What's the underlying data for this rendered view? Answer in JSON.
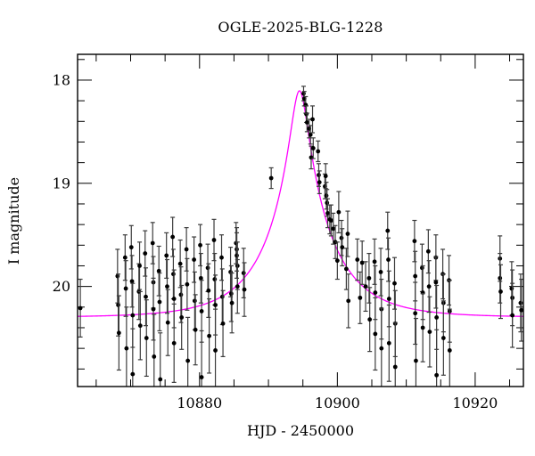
{
  "figure": {
    "background": "#ffffff"
  },
  "chart_data": {
    "type": "scatter",
    "title": "OGLE-2025-BLG-1228",
    "xlabel": "HJD - 2450000",
    "ylabel": "I magnitude",
    "xlim": [
      10862.3,
      10927.0
    ],
    "ylim": [
      20.97,
      17.75
    ],
    "y_axis_inverted": true,
    "grid": false,
    "x_major_ticks": [
      10880,
      10900,
      10920
    ],
    "x_minor_step": 5,
    "y_major_ticks": [
      18,
      19,
      20
    ],
    "y_minor_step": 0.2,
    "axis_color": "#000000",
    "point_color": "#000000",
    "errorbar_color": "#3c3c3c",
    "model_curve": {
      "form": "paczynski-point-lens",
      "t0": 10894.5,
      "tE": 9.0,
      "u0": 0.133,
      "I0": 20.3,
      "color": "#ff00ff"
    },
    "points": [
      [
        10862.7,
        20.21,
        0.28
      ],
      [
        10868.1,
        19.9,
        0.26
      ],
      [
        10868.2,
        20.18,
        0.3
      ],
      [
        10868.3,
        20.45,
        0.36
      ],
      [
        10869.2,
        19.72,
        0.22
      ],
      [
        10869.3,
        20.02,
        0.27
      ],
      [
        10869.4,
        20.6,
        0.4
      ],
      [
        10870.1,
        19.62,
        0.21
      ],
      [
        10870.2,
        19.95,
        0.25
      ],
      [
        10870.3,
        20.28,
        0.31
      ],
      [
        10870.3,
        20.85,
        0.44
      ],
      [
        10871.2,
        20.05,
        0.27
      ],
      [
        10871.3,
        19.8,
        0.23
      ],
      [
        10871.4,
        20.38,
        0.33
      ],
      [
        10872.1,
        19.68,
        0.22
      ],
      [
        10872.2,
        20.1,
        0.28
      ],
      [
        10872.3,
        20.5,
        0.37
      ],
      [
        10873.2,
        19.58,
        0.2
      ],
      [
        10873.3,
        19.96,
        0.25
      ],
      [
        10873.3,
        20.22,
        0.3
      ],
      [
        10873.4,
        20.68,
        0.41
      ],
      [
        10874.1,
        19.85,
        0.24
      ],
      [
        10874.2,
        20.15,
        0.28
      ],
      [
        10874.3,
        20.9,
        0.45
      ],
      [
        10875.2,
        19.7,
        0.22
      ],
      [
        10875.3,
        20.0,
        0.26
      ],
      [
        10875.4,
        20.35,
        0.32
      ],
      [
        10876.1,
        19.52,
        0.19
      ],
      [
        10876.2,
        19.88,
        0.24
      ],
      [
        10876.3,
        20.12,
        0.28
      ],
      [
        10876.3,
        20.55,
        0.38
      ],
      [
        10877.2,
        19.78,
        0.23
      ],
      [
        10877.3,
        20.08,
        0.27
      ],
      [
        10877.4,
        20.3,
        0.31
      ],
      [
        10878.1,
        19.64,
        0.21
      ],
      [
        10878.2,
        19.98,
        0.25
      ],
      [
        10878.3,
        20.72,
        0.42
      ],
      [
        10879.2,
        19.74,
        0.22
      ],
      [
        10879.3,
        20.14,
        0.28
      ],
      [
        10879.4,
        20.42,
        0.34
      ],
      [
        10880.1,
        19.6,
        0.2
      ],
      [
        10880.2,
        19.92,
        0.24
      ],
      [
        10880.3,
        20.24,
        0.3
      ],
      [
        10880.3,
        20.88,
        0.45
      ],
      [
        10881.2,
        19.82,
        0.23
      ],
      [
        10881.3,
        20.04,
        0.26
      ],
      [
        10881.4,
        20.48,
        0.36
      ],
      [
        10882.1,
        19.55,
        0.2
      ],
      [
        10882.2,
        19.93,
        0.25
      ],
      [
        10882.3,
        20.18,
        0.29
      ],
      [
        10882.3,
        20.62,
        0.4
      ],
      [
        10883.2,
        19.72,
        0.22
      ],
      [
        10883.3,
        20.1,
        0.27
      ],
      [
        10883.4,
        20.36,
        0.32
      ],
      [
        10884.5,
        19.86,
        0.24
      ],
      [
        10884.6,
        20.07,
        0.27
      ],
      [
        10884.7,
        20.16,
        0.29
      ],
      [
        10885.3,
        19.58,
        0.2
      ],
      [
        10885.4,
        19.64,
        0.21
      ],
      [
        10885.4,
        19.7,
        0.22
      ],
      [
        10885.5,
        19.8,
        0.23
      ],
      [
        10885.5,
        20.0,
        0.26
      ],
      [
        10886.4,
        19.87,
        0.24
      ],
      [
        10886.5,
        20.03,
        0.26
      ],
      [
        10890.4,
        18.95,
        0.1
      ],
      [
        10895.1,
        18.13,
        0.07
      ],
      [
        10895.2,
        18.18,
        0.07
      ],
      [
        10895.4,
        18.24,
        0.08
      ],
      [
        10895.5,
        18.33,
        0.08
      ],
      [
        10895.6,
        18.41,
        0.09
      ],
      [
        10895.9,
        18.47,
        0.09
      ],
      [
        10896.1,
        18.53,
        0.09
      ],
      [
        10896.2,
        18.75,
        0.11
      ],
      [
        10896.4,
        18.38,
        0.13
      ],
      [
        10896.5,
        18.66,
        0.1
      ],
      [
        10897.2,
        18.69,
        0.1
      ],
      [
        10897.3,
        18.92,
        0.11
      ],
      [
        10897.4,
        18.99,
        0.11
      ],
      [
        10898.2,
        19.03,
        0.12
      ],
      [
        10898.3,
        18.93,
        0.12
      ],
      [
        10898.4,
        19.12,
        0.13
      ],
      [
        10898.5,
        19.19,
        0.13
      ],
      [
        10898.6,
        19.29,
        0.14
      ],
      [
        10898.9,
        19.35,
        0.14
      ],
      [
        10899.1,
        19.36,
        0.15
      ],
      [
        10899.4,
        19.44,
        0.15
      ],
      [
        10899.7,
        19.57,
        0.16
      ],
      [
        10900.0,
        19.75,
        0.18
      ],
      [
        10900.2,
        19.28,
        0.2
      ],
      [
        10900.6,
        19.53,
        0.17
      ],
      [
        10900.7,
        19.62,
        0.18
      ],
      [
        10901.3,
        19.83,
        0.2
      ],
      [
        10901.5,
        19.49,
        0.22
      ],
      [
        10901.6,
        20.14,
        0.26
      ],
      [
        10902.9,
        19.74,
        0.2
      ],
      [
        10903.3,
        20.11,
        0.25
      ],
      [
        10903.6,
        19.77,
        0.21
      ],
      [
        10904.1,
        20.0,
        0.24
      ],
      [
        10904.6,
        19.92,
        0.24
      ],
      [
        10904.7,
        20.32,
        0.31
      ],
      [
        10905.4,
        19.76,
        0.22
      ],
      [
        10905.5,
        20.06,
        0.26
      ],
      [
        10905.5,
        20.46,
        0.35
      ],
      [
        10906.3,
        19.86,
        0.23
      ],
      [
        10906.4,
        20.22,
        0.29
      ],
      [
        10906.4,
        20.6,
        0.39
      ],
      [
        10907.3,
        19.46,
        0.18
      ],
      [
        10907.4,
        19.74,
        0.21
      ],
      [
        10907.5,
        20.12,
        0.27
      ],
      [
        10907.5,
        20.55,
        0.37
      ],
      [
        10908.3,
        19.97,
        0.25
      ],
      [
        10908.4,
        20.36,
        0.32
      ],
      [
        10908.4,
        20.78,
        0.43
      ],
      [
        10911.2,
        19.56,
        0.2
      ],
      [
        10911.3,
        19.9,
        0.24
      ],
      [
        10911.3,
        20.26,
        0.3
      ],
      [
        10911.4,
        20.72,
        0.41
      ],
      [
        10912.3,
        19.82,
        0.23
      ],
      [
        10912.4,
        20.06,
        0.26
      ],
      [
        10912.4,
        20.4,
        0.33
      ],
      [
        10913.2,
        19.66,
        0.21
      ],
      [
        10913.3,
        20.0,
        0.25
      ],
      [
        10913.4,
        20.44,
        0.34
      ],
      [
        10914.3,
        19.72,
        0.22
      ],
      [
        10914.3,
        19.96,
        0.25
      ],
      [
        10914.4,
        20.3,
        0.31
      ],
      [
        10914.4,
        20.86,
        0.44
      ],
      [
        10915.3,
        19.88,
        0.24
      ],
      [
        10915.4,
        20.16,
        0.28
      ],
      [
        10915.4,
        20.5,
        0.36
      ],
      [
        10916.2,
        19.94,
        0.24
      ],
      [
        10916.3,
        20.24,
        0.3
      ],
      [
        10916.3,
        20.62,
        0.4
      ],
      [
        10923.6,
        19.73,
        0.22
      ],
      [
        10923.6,
        19.92,
        0.24
      ],
      [
        10923.7,
        20.05,
        0.26
      ],
      [
        10925.3,
        20.02,
        0.26
      ],
      [
        10925.4,
        20.11,
        0.27
      ],
      [
        10925.4,
        20.28,
        0.31
      ],
      [
        10926.6,
        20.16,
        0.28
      ],
      [
        10926.7,
        20.23,
        0.3
      ]
    ]
  }
}
